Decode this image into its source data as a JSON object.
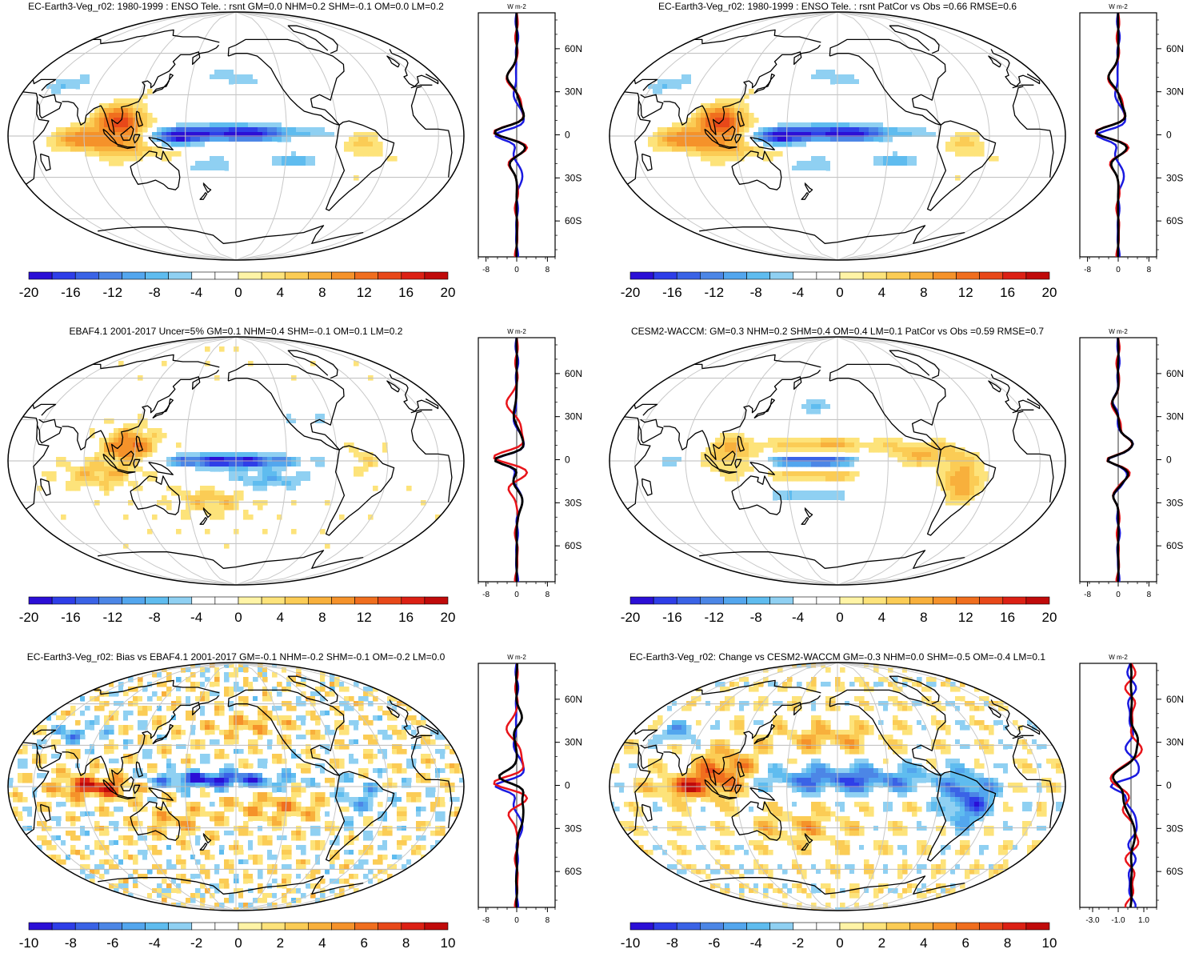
{
  "figure": {
    "panels": [
      {
        "title": "EC-Earth3-Veg_r02: 1980-1999 : ENSO Tele. : rsnt GM=0.0 NHM=0.2 SHM=-0.1 OM=0.0 LM=0.2",
        "map_pattern": "model",
        "colorbar_ticks": [
          "-20",
          "-16",
          "-12",
          "-8",
          "-4",
          "0",
          "4",
          "8",
          "12",
          "16",
          "20"
        ],
        "colorbar_range": [
          -20,
          20
        ],
        "profile_units": "W m-2",
        "profile_xticks": [
          "-8",
          "0",
          "8"
        ],
        "profile_xlim": [
          -10,
          10
        ],
        "profile_yticks": [
          "60N",
          "30N",
          "0",
          "30S",
          "60S"
        ]
      },
      {
        "title": "EC-Earth3-Veg_r02: 1980-1999 : ENSO Tele. : rsnt PatCor vs Obs =0.66 RMSE=0.6",
        "map_pattern": "model",
        "colorbar_ticks": [
          "-20",
          "-16",
          "-12",
          "-8",
          "-4",
          "0",
          "4",
          "8",
          "12",
          "16",
          "20"
        ],
        "colorbar_range": [
          -20,
          20
        ],
        "profile_units": "W m-2",
        "profile_xticks": [
          "-8",
          "0",
          "8"
        ],
        "profile_xlim": [
          -10,
          10
        ],
        "profile_yticks": [
          "60N",
          "30N",
          "0",
          "30S",
          "60S"
        ]
      },
      {
        "title": "EBAF4.1 2001-2017 Uncer=5% GM=0.1 NHM=0.4 SHM=-0.1 OM=0.1 LM=0.2",
        "map_pattern": "obs",
        "colorbar_ticks": [
          "-20",
          "-16",
          "-12",
          "-8",
          "-4",
          "0",
          "4",
          "8",
          "12",
          "16",
          "20"
        ],
        "colorbar_range": [
          -20,
          20
        ],
        "profile_units": "W m-2",
        "profile_xticks": [
          "-8",
          "0",
          "8"
        ],
        "profile_xlim": [
          -10,
          10
        ],
        "profile_yticks": [
          "60N",
          "30N",
          "0",
          "30S",
          "60S"
        ]
      },
      {
        "title": "CESM2-WACCM: GM=0.3 NHM=0.2 SHM=0.4 OM=0.4 LM=0.1 PatCor vs Obs =0.59 RMSE=0.7",
        "map_pattern": "cesm",
        "colorbar_ticks": [
          "-20",
          "-16",
          "-12",
          "-8",
          "-4",
          "0",
          "4",
          "8",
          "12",
          "16",
          "20"
        ],
        "colorbar_range": [
          -20,
          20
        ],
        "profile_units": "W m-2",
        "profile_xticks": [
          "-8",
          "0",
          "8"
        ],
        "profile_xlim": [
          -10,
          10
        ],
        "profile_yticks": [
          "60N",
          "30N",
          "0",
          "30S",
          "60S"
        ]
      },
      {
        "title": "EC-Earth3-Veg_r02: Bias vs EBAF4.1 2001-2017 GM=-0.1 NHM=-0.2 SHM=-0.1 OM=-0.2 LM=0.0",
        "map_pattern": "bias",
        "colorbar_ticks": [
          "-10",
          "-8",
          "-6",
          "-4",
          "-2",
          "0",
          "2",
          "4",
          "6",
          "8",
          "10"
        ],
        "colorbar_range": [
          -10,
          10
        ],
        "profile_units": "W m-2",
        "profile_xticks": [
          "-8",
          "0",
          "8"
        ],
        "profile_xlim": [
          -10,
          10
        ],
        "profile_yticks": [
          "60N",
          "30N",
          "0",
          "30S",
          "60S"
        ]
      },
      {
        "title": "EC-Earth3-Veg_r02: Change vs CESM2-WACCM GM=-0.3 NHM=0.0 SHM=-0.5 OM=-0.4 LM=0.1",
        "map_pattern": "change",
        "colorbar_ticks": [
          "-10",
          "-8",
          "-6",
          "-4",
          "-2",
          "0",
          "2",
          "4",
          "6",
          "8",
          "10"
        ],
        "colorbar_range": [
          -10,
          10
        ],
        "profile_units": "W m-2",
        "profile_xticks": [
          "-3.0",
          "-1.0",
          "1.0"
        ],
        "profile_xlim": [
          -4,
          2
        ],
        "profile_yticks": [
          "60N",
          "30N",
          "0",
          "30S",
          "60S"
        ]
      }
    ],
    "palette": [
      "#2b0fd6",
      "#2e3ee8",
      "#3a63e6",
      "#4c86e6",
      "#53a6ee",
      "#5fbcef",
      "#8fd0f2",
      "#ffffff",
      "#ffffff",
      "#fff4a6",
      "#fde37a",
      "#fbcc55",
      "#f8b03c",
      "#f5922a",
      "#f06e1e",
      "#e84819",
      "#dc2014",
      "#c00a0a"
    ],
    "profile_colors": {
      "obs": "#000000",
      "model_a": "#e8141a",
      "model_b": "#1a1ae0"
    }
  }
}
